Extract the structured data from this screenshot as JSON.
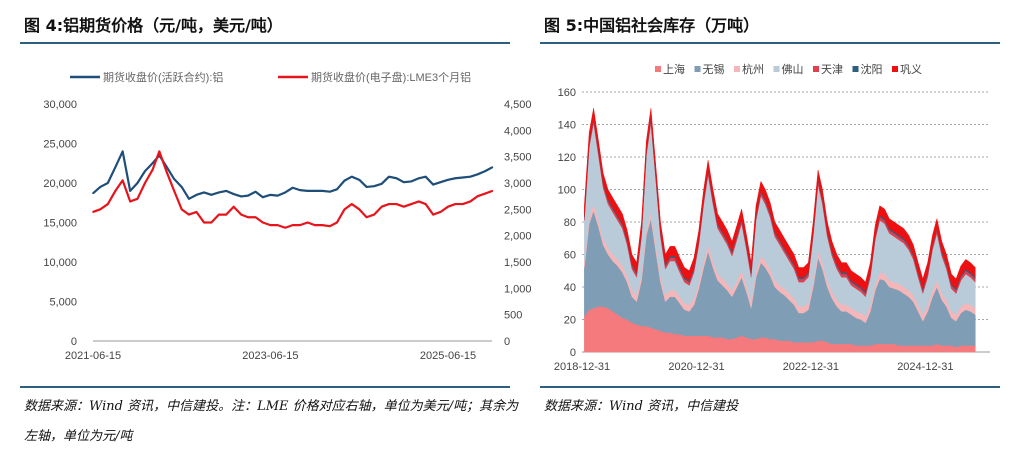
{
  "left_title": "图 4:铝期货价格（元/吨，美元/吨）",
  "right_title": "图 5:中国铝社会库存（万吨）",
  "left_source": "数据来源：Wind 资讯，中信建投。注：LME 价格对应右轴，单位为美元/吨；其余为左轴，单位为元/吨",
  "right_source": "数据来源：Wind 资讯，中信建投",
  "chart_data": [
    {
      "type": "line",
      "legend_position": "top",
      "grid": false,
      "x_ticks": [
        "2021-06-15",
        "2023-06-15",
        "2025-06-15"
      ],
      "y_left": {
        "lim": [
          0,
          30000
        ],
        "ticks": [
          "0",
          "5,000",
          "10,000",
          "15,000",
          "20,000",
          "25,000",
          "30,000"
        ]
      },
      "y_right": {
        "lim": [
          0,
          4500
        ],
        "ticks": [
          "0",
          "500",
          "1,000",
          "1,500",
          "2,000",
          "2,500",
          "3,000",
          "3,500",
          "4,000",
          "4,500"
        ]
      },
      "x": [
        "2021-06",
        "2021-07",
        "2021-08",
        "2021-09",
        "2021-10",
        "2021-11",
        "2021-12",
        "2022-01",
        "2022-02",
        "2022-03",
        "2022-04",
        "2022-05",
        "2022-06",
        "2022-07",
        "2022-08",
        "2022-09",
        "2022-10",
        "2022-11",
        "2022-12",
        "2023-01",
        "2023-02",
        "2023-03",
        "2023-04",
        "2023-05",
        "2023-06",
        "2023-07",
        "2023-08",
        "2023-09",
        "2023-10",
        "2023-11",
        "2023-12",
        "2024-01",
        "2024-02",
        "2024-03",
        "2024-04",
        "2024-05",
        "2024-06",
        "2024-07",
        "2024-08",
        "2024-09",
        "2024-10",
        "2024-11",
        "2024-12",
        "2025-01",
        "2025-02",
        "2025-03",
        "2025-04",
        "2025-05",
        "2025-06",
        "2025-07",
        "2025-08",
        "2025-09",
        "2025-10",
        "2025-11",
        "2025-12"
      ],
      "series": [
        {
          "name": "期货收盘价(活跃合约):铝",
          "axis": "left",
          "color": "#1f4e79",
          "values": [
            18700,
            19500,
            20000,
            22000,
            24000,
            19000,
            20000,
            21500,
            22500,
            23500,
            22000,
            20500,
            19500,
            18000,
            18500,
            18800,
            18500,
            18800,
            19000,
            18600,
            18300,
            18400,
            18900,
            18200,
            18500,
            18400,
            18800,
            19400,
            19100,
            19000,
            19000,
            19000,
            18900,
            19200,
            20300,
            20800,
            20400,
            19500,
            19600,
            19900,
            20800,
            20600,
            20100,
            20200,
            20600,
            20800,
            19800,
            20100,
            20400,
            20600,
            20700,
            20800,
            21100,
            21500,
            22000
          ]
        },
        {
          "name": "期货收盘价(电子盘):LME3个月铝",
          "axis": "right",
          "color": "#e8141b",
          "values": [
            2450,
            2500,
            2600,
            2850,
            3050,
            2650,
            2700,
            3000,
            3250,
            3600,
            3200,
            2850,
            2500,
            2400,
            2450,
            2250,
            2250,
            2400,
            2400,
            2550,
            2400,
            2350,
            2350,
            2250,
            2200,
            2200,
            2150,
            2200,
            2200,
            2250,
            2200,
            2200,
            2180,
            2250,
            2500,
            2600,
            2500,
            2350,
            2400,
            2550,
            2600,
            2600,
            2550,
            2600,
            2650,
            2600,
            2400,
            2450,
            2550,
            2600,
            2600,
            2650,
            2750,
            2800,
            2850
          ]
        }
      ]
    },
    {
      "type": "area",
      "stacked": true,
      "legend_position": "top",
      "grid": true,
      "x_ticks": [
        "2018-12-31",
        "2020-12-31",
        "2022-12-31",
        "2024-12-31"
      ],
      "ylim": [
        0,
        160
      ],
      "y_ticks": [
        "0",
        "20",
        "40",
        "60",
        "80",
        "100",
        "120",
        "140",
        "160"
      ],
      "x": [
        "2019-01",
        "2019-02",
        "2019-03",
        "2019-04",
        "2019-05",
        "2019-06",
        "2019-07",
        "2019-08",
        "2019-09",
        "2019-10",
        "2019-11",
        "2019-12",
        "2020-01",
        "2020-02",
        "2020-03",
        "2020-04",
        "2020-05",
        "2020-06",
        "2020-07",
        "2020-08",
        "2020-09",
        "2020-10",
        "2020-11",
        "2020-12",
        "2021-01",
        "2021-02",
        "2021-03",
        "2021-04",
        "2021-05",
        "2021-06",
        "2021-07",
        "2021-08",
        "2021-09",
        "2021-10",
        "2021-11",
        "2021-12",
        "2022-01",
        "2022-02",
        "2022-03",
        "2022-04",
        "2022-05",
        "2022-06",
        "2022-07",
        "2022-08",
        "2022-09",
        "2022-10",
        "2022-11",
        "2022-12",
        "2023-01",
        "2023-02",
        "2023-03",
        "2023-04",
        "2023-05",
        "2023-06",
        "2023-07",
        "2023-08",
        "2023-09",
        "2023-10",
        "2023-11",
        "2023-12",
        "2024-01",
        "2024-02",
        "2024-03",
        "2024-04",
        "2024-05",
        "2024-06",
        "2024-07",
        "2024-08",
        "2024-09",
        "2024-10",
        "2024-11",
        "2024-12",
        "2025-01",
        "2025-02",
        "2025-03",
        "2025-04",
        "2025-05",
        "2025-06",
        "2025-07",
        "2025-08",
        "2025-09",
        "2025-10",
        "2025-11"
      ],
      "series": [
        {
          "name": "上海",
          "color": "#f47a7e",
          "values": [
            22,
            26,
            27,
            28,
            28,
            27,
            25,
            23,
            21,
            20,
            18,
            17,
            16,
            16,
            15,
            14,
            13,
            12,
            12,
            11,
            11,
            10,
            10,
            10,
            10,
            10,
            10,
            9,
            9,
            9,
            8,
            8,
            9,
            10,
            9,
            8,
            8,
            9,
            9,
            8,
            8,
            7,
            7,
            7,
            6,
            6,
            6,
            6,
            6,
            7,
            7,
            6,
            5,
            5,
            5,
            5,
            5,
            4,
            4,
            4,
            4,
            5,
            5,
            5,
            5,
            5,
            4,
            4,
            4,
            4,
            4,
            4,
            4,
            4,
            5,
            4,
            4,
            4,
            3,
            4,
            4,
            4,
            4
          ]
        },
        {
          "name": "无锡",
          "color": "#7f9db5",
          "values": [
            30,
            53,
            60,
            49,
            38,
            33,
            31,
            30,
            28,
            23,
            16,
            14,
            28,
            56,
            67,
            48,
            30,
            19,
            22,
            23,
            19,
            16,
            15,
            19,
            29,
            42,
            52,
            43,
            35,
            32,
            30,
            26,
            31,
            36,
            28,
            19,
            38,
            46,
            43,
            39,
            32,
            30,
            28,
            25,
            23,
            18,
            18,
            20,
            34,
            51,
            44,
            34,
            28,
            23,
            20,
            20,
            18,
            17,
            16,
            14,
            21,
            33,
            40,
            39,
            35,
            34,
            34,
            32,
            30,
            27,
            21,
            15,
            21,
            30,
            35,
            28,
            24,
            17,
            16,
            20,
            22,
            21,
            19
          ]
        },
        {
          "name": "杭州",
          "color": "#f4b6b8",
          "values": [
            4,
            4,
            4,
            4,
            4,
            4,
            4,
            4,
            4,
            4,
            4,
            4,
            4,
            4,
            4,
            4,
            4,
            4,
            4,
            4,
            4,
            4,
            4,
            4,
            4,
            4,
            4,
            4,
            4,
            4,
            4,
            4,
            4,
            4,
            4,
            4,
            4,
            4,
            4,
            4,
            4,
            4,
            4,
            4,
            4,
            4,
            4,
            4,
            4,
            4,
            4,
            4,
            4,
            4,
            4,
            4,
            4,
            4,
            4,
            4,
            4,
            4,
            4,
            4,
            4,
            4,
            4,
            4,
            4,
            4,
            4,
            4,
            4,
            4,
            4,
            4,
            4,
            4,
            4,
            4,
            4,
            4,
            4
          ]
        },
        {
          "name": "佛山",
          "color": "#b9cbd9",
          "values": [
            25,
            43,
            50,
            40,
            31,
            27,
            26,
            24,
            23,
            19,
            13,
            11,
            23,
            45,
            55,
            40,
            24,
            16,
            18,
            18,
            15,
            13,
            12,
            16,
            23,
            35,
            43,
            35,
            28,
            26,
            24,
            21,
            25,
            29,
            22,
            15,
            31,
            37,
            35,
            32,
            27,
            25,
            22,
            20,
            18,
            15,
            15,
            16,
            27,
            41,
            36,
            27,
            22,
            19,
            17,
            17,
            14,
            14,
            13,
            12,
            17,
            27,
            32,
            31,
            29,
            28,
            27,
            27,
            25,
            22,
            17,
            13,
            17,
            25,
            29,
            23,
            19,
            14,
            13,
            16,
            18,
            17,
            16
          ]
        },
        {
          "name": "天津",
          "color": "#e0404f",
          "values": [
            2,
            2,
            2,
            2,
            2,
            2,
            2,
            2,
            2,
            2,
            2,
            2,
            2,
            2,
            2,
            2,
            2,
            2,
            2,
            2,
            2,
            2,
            2,
            2,
            2,
            2,
            2,
            2,
            2,
            2,
            2,
            2,
            2,
            2,
            2,
            2,
            2,
            2,
            2,
            2,
            2,
            2,
            2,
            2,
            2,
            2,
            2,
            2,
            2,
            2,
            2,
            2,
            2,
            2,
            2,
            2,
            2,
            2,
            2,
            2,
            2,
            2,
            2,
            2,
            2,
            2,
            2,
            2,
            2,
            2,
            2,
            2,
            2,
            2,
            2,
            2,
            2,
            2,
            2,
            2,
            2,
            2,
            2
          ]
        },
        {
          "name": "沈阳",
          "color": "#2e5e80",
          "values": [
            1,
            1,
            1,
            1,
            1,
            1,
            1,
            1,
            1,
            1,
            1,
            1,
            1,
            1,
            1,
            1,
            1,
            1,
            1,
            1,
            1,
            1,
            1,
            1,
            1,
            1,
            1,
            1,
            1,
            1,
            1,
            1,
            1,
            1,
            1,
            1,
            1,
            1,
            1,
            1,
            1,
            1,
            1,
            1,
            1,
            1,
            1,
            1,
            1,
            1,
            1,
            1,
            1,
            1,
            1,
            1,
            1,
            1,
            1,
            1,
            1,
            1,
            1,
            1,
            1,
            1,
            1,
            1,
            1,
            1,
            1,
            1,
            1,
            1,
            1,
            1,
            1,
            1,
            1,
            1,
            1,
            1,
            1
          ]
        },
        {
          "name": "巩义",
          "color": "#ee1010",
          "values": [
            6,
            6,
            6,
            6,
            6,
            6,
            6,
            6,
            6,
            6,
            6,
            6,
            6,
            6,
            6,
            6,
            6,
            6,
            6,
            6,
            6,
            6,
            6,
            6,
            6,
            6,
            6,
            6,
            6,
            6,
            6,
            6,
            6,
            6,
            6,
            6,
            6,
            6,
            6,
            6,
            6,
            6,
            6,
            6,
            6,
            6,
            6,
            6,
            6,
            6,
            6,
            6,
            6,
            6,
            6,
            6,
            6,
            6,
            6,
            6,
            6,
            6,
            6,
            6,
            6,
            6,
            6,
            6,
            6,
            6,
            6,
            6,
            6,
            6,
            6,
            6,
            6,
            6,
            6,
            6,
            6,
            6,
            6
          ]
        }
      ]
    }
  ]
}
